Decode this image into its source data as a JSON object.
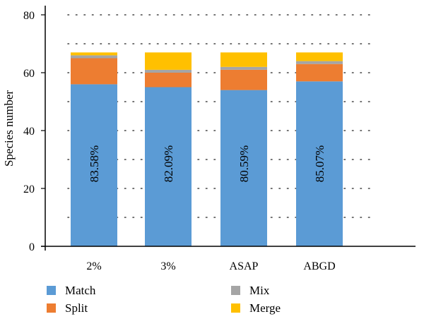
{
  "chart_data": {
    "type": "bar",
    "stacked": true,
    "title": "",
    "xlabel": "",
    "ylabel": "Species number",
    "ylim": [
      0,
      80
    ],
    "yticks": [
      0,
      20,
      40,
      60,
      80
    ],
    "grid": "dotted horizontal",
    "legend_position": "bottom",
    "categories": [
      "2%",
      "3%",
      "ASAP",
      "ABGD"
    ],
    "series": [
      {
        "name": "Match",
        "color": "#5b9bd5",
        "values": [
          56,
          55,
          54,
          57
        ]
      },
      {
        "name": "Split",
        "color": "#ed7d31",
        "values": [
          9,
          5,
          7,
          6
        ]
      },
      {
        "name": "Mix",
        "color": "#a5a5a5",
        "values": [
          1,
          1,
          1,
          1
        ]
      },
      {
        "name": "Merge",
        "color": "#ffc000",
        "values": [
          1,
          6,
          5,
          3
        ]
      }
    ],
    "annotations": [
      "83.58%",
      "82.09%",
      "80.59%",
      "85.07%"
    ]
  }
}
